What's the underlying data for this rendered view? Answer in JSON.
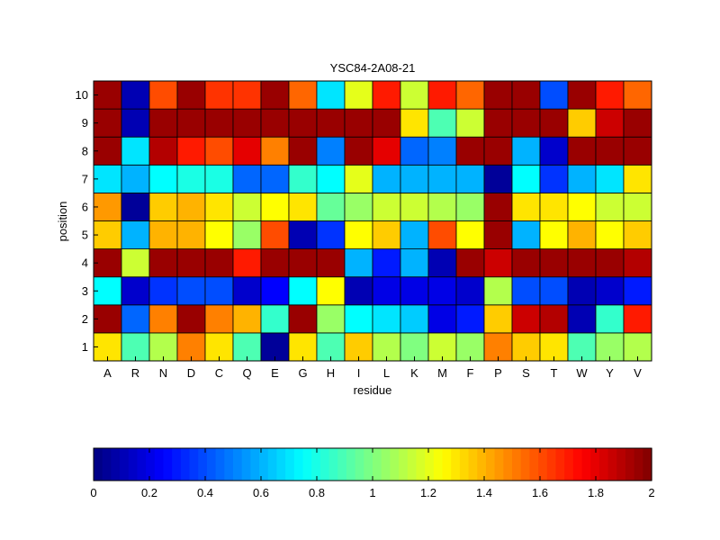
{
  "chart_data": {
    "type": "heatmap",
    "title": "YSC84-2A08-21",
    "xlabel": "residue",
    "ylabel": "position",
    "x_categories": [
      "A",
      "R",
      "N",
      "D",
      "C",
      "Q",
      "E",
      "G",
      "H",
      "I",
      "L",
      "K",
      "M",
      "F",
      "P",
      "S",
      "T",
      "W",
      "Y",
      "V"
    ],
    "y_categories": [
      1,
      2,
      3,
      4,
      5,
      6,
      7,
      8,
      9,
      10
    ],
    "values": [
      [
        1.3,
        0.9,
        1.1,
        1.5,
        1.3,
        0.9,
        0.05,
        1.3,
        0.9,
        1.35,
        1.1,
        1.0,
        1.15,
        1.05,
        1.5,
        1.35,
        1.3,
        0.9,
        1.05,
        1.1
      ],
      [
        1.95,
        0.45,
        1.5,
        1.95,
        1.5,
        1.4,
        0.85,
        1.95,
        1.05,
        0.75,
        0.7,
        0.65,
        0.2,
        0.3,
        1.35,
        1.85,
        1.9,
        0.1,
        0.85,
        1.7
      ],
      [
        0.75,
        0.15,
        0.35,
        0.4,
        0.4,
        0.15,
        0.25,
        0.75,
        1.25,
        0.1,
        0.2,
        0.2,
        0.2,
        0.15,
        1.1,
        0.4,
        0.4,
        0.1,
        0.15,
        0.3
      ],
      [
        1.95,
        1.15,
        1.95,
        1.95,
        1.95,
        1.7,
        1.95,
        1.95,
        1.95,
        0.6,
        0.3,
        0.6,
        0.1,
        1.95,
        1.85,
        1.95,
        1.95,
        1.95,
        1.95,
        1.9
      ],
      [
        1.35,
        0.6,
        1.4,
        1.4,
        1.25,
        1.05,
        1.6,
        0.1,
        0.35,
        1.25,
        1.35,
        0.6,
        1.6,
        1.25,
        1.95,
        0.6,
        1.25,
        1.4,
        1.25,
        1.35
      ],
      [
        1.45,
        0.05,
        1.35,
        1.4,
        1.3,
        1.15,
        1.25,
        1.3,
        0.95,
        1.05,
        1.15,
        1.15,
        1.1,
        1.05,
        1.95,
        1.3,
        1.3,
        1.25,
        1.15,
        1.15
      ],
      [
        0.7,
        0.6,
        0.75,
        0.8,
        0.8,
        0.45,
        0.45,
        0.85,
        0.75,
        1.2,
        0.6,
        0.6,
        0.6,
        0.6,
        0.05,
        0.75,
        0.35,
        0.6,
        0.7,
        1.3
      ],
      [
        1.95,
        0.7,
        1.9,
        1.7,
        1.6,
        1.8,
        1.5,
        1.95,
        0.5,
        1.95,
        1.8,
        0.45,
        0.5,
        1.95,
        1.95,
        0.6,
        0.15,
        1.95,
        1.95,
        1.95
      ],
      [
        1.95,
        0.1,
        1.95,
        1.95,
        1.95,
        1.95,
        1.95,
        1.95,
        1.95,
        1.95,
        1.95,
        1.3,
        0.9,
        1.15,
        1.95,
        1.95,
        1.95,
        1.35,
        1.85,
        1.95
      ],
      [
        1.95,
        0.1,
        1.6,
        1.95,
        1.65,
        1.65,
        1.95,
        1.55,
        0.7,
        1.2,
        1.7,
        1.15,
        1.7,
        1.55,
        1.95,
        1.95,
        0.4,
        1.95,
        1.7,
        1.55
      ]
    ],
    "colorbar": {
      "range": [
        0,
        2
      ],
      "colormap": "jet",
      "tick_values": [
        0,
        0.2,
        0.4,
        0.6,
        0.8,
        1,
        1.2,
        1.4,
        1.6,
        1.8,
        2
      ],
      "tick_labels": [
        "0",
        "0.2",
        "0.4",
        "0.6",
        "0.8",
        "1",
        "1.2",
        "1.4",
        "1.6",
        "1.8",
        "2"
      ]
    }
  }
}
